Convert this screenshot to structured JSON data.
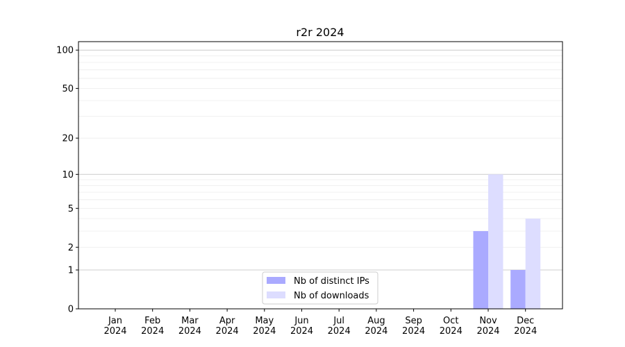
{
  "chart_data": {
    "type": "bar",
    "title": "r2r 2024",
    "xlabel": "",
    "ylabel": "",
    "yscale": "log(1+y)",
    "ylim": [
      0,
      110
    ],
    "yticks": [
      0,
      1,
      2,
      5,
      10,
      20,
      50,
      100
    ],
    "categories": [
      "Jan\n2024",
      "Feb\n2024",
      "Mar\n2024",
      "Apr\n2024",
      "May\n2024",
      "Jun\n2024",
      "Jul\n2024",
      "Aug\n2024",
      "Sep\n2024",
      "Oct\n2024",
      "Nov\n2024",
      "Dec\n2024"
    ],
    "series": [
      {
        "name": "Nb of distinct IPs",
        "color": "#aaaaff",
        "values": [
          0,
          0,
          0,
          0,
          0,
          0,
          0,
          0,
          0,
          0,
          3,
          1
        ]
      },
      {
        "name": "Nb of downloads",
        "color": "#ddddff",
        "values": [
          0,
          0,
          0,
          0,
          0,
          0,
          0,
          0,
          0,
          0,
          10,
          4
        ]
      }
    ],
    "grid": true,
    "legend_position": "lower-center"
  }
}
